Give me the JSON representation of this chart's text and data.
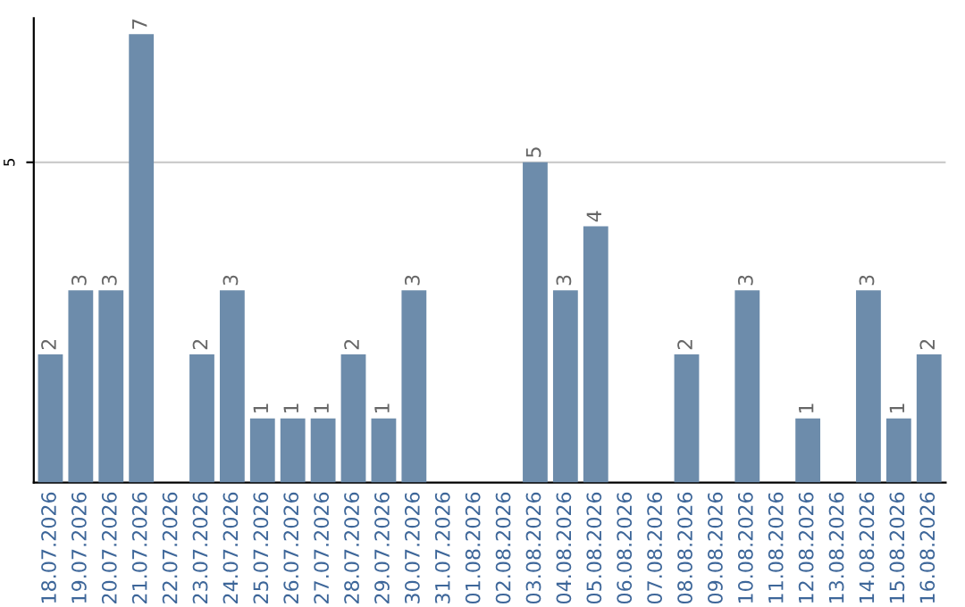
{
  "chart_data": {
    "type": "bar",
    "categories": [
      "18.07.2026",
      "19.07.2026",
      "20.07.2026",
      "21.07.2026",
      "22.07.2026",
      "23.07.2026",
      "24.07.2026",
      "25.07.2026",
      "26.07.2026",
      "27.07.2026",
      "28.07.2026",
      "29.07.2026",
      "30.07.2026",
      "31.07.2026",
      "01.08.2026",
      "02.08.2026",
      "03.08.2026",
      "04.08.2026",
      "05.08.2026",
      "06.08.2026",
      "07.08.2026",
      "08.08.2026",
      "09.08.2026",
      "10.08.2026",
      "11.08.2026",
      "12.08.2026",
      "13.08.2026",
      "14.08.2026",
      "15.08.2026",
      "16.08.2026"
    ],
    "values": [
      2,
      3,
      3,
      7,
      0,
      2,
      3,
      1,
      1,
      1,
      2,
      1,
      3,
      0,
      0,
      0,
      5,
      3,
      4,
      0,
      0,
      2,
      0,
      3,
      0,
      1,
      0,
      3,
      1,
      2
    ],
    "value_labels": [
      "2",
      "3",
      "3",
      "7",
      null,
      "2",
      "3",
      "1",
      "1",
      "1",
      "2",
      "1",
      "3",
      null,
      null,
      null,
      "5",
      "3",
      "4",
      null,
      null,
      "2",
      null,
      "3",
      null,
      "1",
      null,
      "3",
      "1",
      "2"
    ],
    "color": "#6d8cab",
    "ylim": [
      0,
      7.25
    ],
    "yticks": [
      5
    ],
    "grid": "y"
  }
}
